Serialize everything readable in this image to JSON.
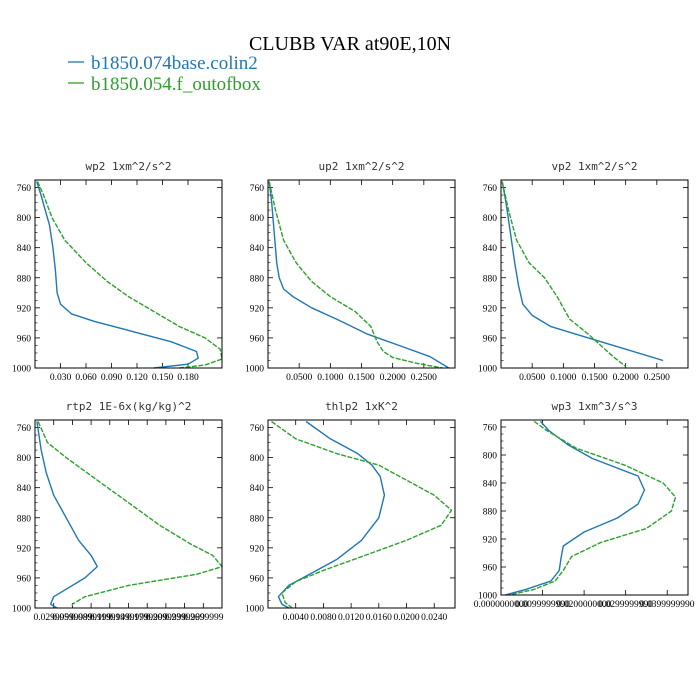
{
  "figure": {
    "title": "CLUBB VAR at90E,10N",
    "legend": [
      {
        "name": "b1850.074base.colin2",
        "color": "#1f77b4"
      },
      {
        "name": "b1850.054.f_outofbox",
        "color": "#2ca02c"
      }
    ]
  },
  "chart_data": [
    {
      "type": "line",
      "title": "wp2   1xm^2/s^2",
      "xlim": [
        0,
        0.22
      ],
      "ylim": [
        1000,
        750
      ],
      "xticks": [
        0.03,
        0.06,
        0.09,
        0.12,
        0.15,
        0.18
      ],
      "xticklabels": [
        "0.030",
        "0.060",
        "0.090",
        "0.120",
        "0.150",
        "0.180"
      ],
      "yticks": [
        760,
        800,
        840,
        880,
        920,
        960,
        1000
      ],
      "series": [
        {
          "name": "b1850.074base.colin2",
          "color": "#1f77b4",
          "x": [
            0.002,
            0.007,
            0.012,
            0.017,
            0.021,
            0.024,
            0.026,
            0.03,
            0.043,
            0.07,
            0.11,
            0.16,
            0.19,
            0.192,
            0.18,
            0.14
          ],
          "y": [
            752,
            770,
            790,
            810,
            840,
            870,
            900,
            915,
            928,
            938,
            950,
            965,
            978,
            987,
            995,
            1000
          ]
        },
        {
          "name": "b1850.054.f_outofbox",
          "color": "#2ca02c",
          "x": [
            0.003,
            0.01,
            0.02,
            0.035,
            0.06,
            0.085,
            0.11,
            0.14,
            0.17,
            0.2,
            0.218,
            0.22,
            0.2,
            0.17
          ],
          "y": [
            752,
            770,
            800,
            830,
            860,
            885,
            905,
            925,
            945,
            960,
            975,
            988,
            996,
            1000
          ]
        }
      ]
    },
    {
      "type": "line",
      "title": "up2   1xm^2/s^2",
      "xlim": [
        0,
        0.3
      ],
      "ylim": [
        1000,
        750
      ],
      "xticks": [
        0.05,
        0.1,
        0.15,
        0.2,
        0.25
      ],
      "xticklabels": [
        "0.0500",
        "0.1000",
        "0.1500",
        "0.2000",
        "0.2500"
      ],
      "yticks": [
        760,
        800,
        840,
        880,
        920,
        960,
        1000
      ],
      "series": [
        {
          "name": "b1850.074base.colin2",
          "color": "#1f77b4",
          "x": [
            0.002,
            0.006,
            0.01,
            0.014,
            0.018,
            0.025,
            0.04,
            0.07,
            0.11,
            0.16,
            0.21,
            0.26,
            0.29
          ],
          "y": [
            752,
            780,
            820,
            860,
            880,
            895,
            905,
            920,
            935,
            955,
            970,
            985,
            1000
          ]
        },
        {
          "name": "b1850.054.f_outofbox",
          "color": "#2ca02c",
          "x": [
            0.002,
            0.012,
            0.025,
            0.045,
            0.07,
            0.1,
            0.14,
            0.165,
            0.175,
            0.185,
            0.2,
            0.24,
            0.28
          ],
          "y": [
            752,
            790,
            830,
            860,
            885,
            905,
            925,
            945,
            965,
            978,
            986,
            994,
            1000
          ]
        }
      ]
    },
    {
      "type": "line",
      "title": "vp2   1xm^2/s^2",
      "xlim": [
        0,
        0.3
      ],
      "ylim": [
        1000,
        750
      ],
      "xticks": [
        0.05,
        0.1,
        0.15,
        0.2,
        0.25
      ],
      "xticklabels": [
        "0.0500",
        "0.1000",
        "0.1500",
        "0.2000",
        "0.2500"
      ],
      "yticks": [
        760,
        800,
        840,
        880,
        920,
        960,
        1000
      ],
      "series": [
        {
          "name": "b1850.074base.colin2",
          "color": "#1f77b4",
          "x": [
            0.002,
            0.008,
            0.015,
            0.022,
            0.028,
            0.035,
            0.05,
            0.08,
            0.14,
            0.2,
            0.26
          ],
          "y": [
            752,
            780,
            820,
            860,
            890,
            915,
            930,
            945,
            960,
            975,
            990
          ]
        },
        {
          "name": "b1850.054.f_outofbox",
          "color": "#2ca02c",
          "x": [
            0.002,
            0.012,
            0.025,
            0.045,
            0.07,
            0.09,
            0.11,
            0.14,
            0.16,
            0.18,
            0.2
          ],
          "y": [
            752,
            790,
            830,
            860,
            880,
            905,
            935,
            955,
            970,
            985,
            998
          ]
        }
      ]
    },
    {
      "type": "line",
      "title": "rtp2   1E-6x(kg/kg)^2",
      "xlim": [
        0,
        0.3
      ],
      "ylim": [
        1000,
        750
      ],
      "xticks": [
        0.03,
        0.06,
        0.09,
        0.12,
        0.15,
        0.18,
        0.21,
        0.24,
        0.27
      ],
      "xticklabels": [
        "0.0299999",
        "0.0599999",
        "0.0899999",
        "0.1199999",
        "0.1499999",
        "0.1799999",
        "0.2099999",
        "0.2399999",
        "0.2699999"
      ],
      "yticks": [
        760,
        800,
        840,
        880,
        920,
        960,
        1000
      ],
      "series": [
        {
          "name": "b1850.074base.colin2",
          "color": "#1f77b4",
          "x": [
            0.003,
            0.01,
            0.018,
            0.03,
            0.05,
            0.07,
            0.09,
            0.1,
            0.08,
            0.05,
            0.03,
            0.025,
            0.035
          ],
          "y": [
            752,
            790,
            820,
            850,
            880,
            910,
            930,
            945,
            960,
            975,
            985,
            995,
            1000
          ]
        },
        {
          "name": "b1850.054.f_outofbox",
          "color": "#2ca02c",
          "x": [
            0.005,
            0.02,
            0.05,
            0.1,
            0.15,
            0.2,
            0.25,
            0.285,
            0.3,
            0.26,
            0.15,
            0.08,
            0.06,
            0.06
          ],
          "y": [
            752,
            780,
            800,
            830,
            860,
            890,
            915,
            930,
            945,
            955,
            970,
            985,
            995,
            1000
          ]
        }
      ]
    },
    {
      "type": "line",
      "title": "thlp2   1xK^2",
      "xlim": [
        0,
        0.027
      ],
      "ylim": [
        1000,
        750
      ],
      "xticks": [
        0.004,
        0.008,
        0.012,
        0.016,
        0.02,
        0.024
      ],
      "xticklabels": [
        "0.0040",
        "0.0080",
        "0.0120",
        "0.0160",
        "0.0200",
        "0.0240"
      ],
      "yticks": [
        760,
        800,
        840,
        880,
        920,
        960,
        1000
      ],
      "series": [
        {
          "name": "b1850.074base.colin2",
          "color": "#1f77b4",
          "x": [
            0.0055,
            0.009,
            0.013,
            0.015,
            0.0162,
            0.0168,
            0.016,
            0.0135,
            0.01,
            0.006,
            0.003,
            0.0015,
            0.002,
            0.003
          ],
          "y": [
            752,
            775,
            795,
            810,
            825,
            850,
            880,
            910,
            935,
            955,
            970,
            985,
            995,
            1000
          ]
        },
        {
          "name": "b1850.054.f_outofbox",
          "color": "#2ca02c",
          "x": [
            0.0005,
            0.004,
            0.01,
            0.016,
            0.02,
            0.024,
            0.0265,
            0.025,
            0.02,
            0.014,
            0.008,
            0.004,
            0.002,
            0.0025,
            0.0035
          ],
          "y": [
            752,
            775,
            795,
            810,
            830,
            850,
            870,
            890,
            910,
            930,
            950,
            965,
            980,
            993,
            1000
          ]
        }
      ]
    },
    {
      "type": "line",
      "title": "wp3   1xm^3/s^3",
      "xlim": [
        0,
        0.045
      ],
      "ylim": [
        1000,
        750
      ],
      "xticks": [
        0,
        0.01,
        0.02,
        0.03,
        0.04
      ],
      "xticklabels": [
        "0.0000000000",
        "0.0099999990",
        "0.0200000000",
        "0.0299999990",
        "0.0399999990"
      ],
      "yticks": [
        760,
        800,
        840,
        880,
        920,
        960,
        1000
      ],
      "series": [
        {
          "name": "b1850.074base.colin2",
          "color": "#1f77b4",
          "x": [
            0.0095,
            0.0115,
            0.016,
            0.022,
            0.033,
            0.0345,
            0.033,
            0.028,
            0.02,
            0.015,
            0.0145,
            0.014,
            0.012,
            0.006,
            0.001
          ],
          "y": [
            752,
            765,
            785,
            805,
            830,
            850,
            870,
            890,
            910,
            930,
            945,
            965,
            980,
            992,
            1000
          ]
        },
        {
          "name": "b1850.054.f_outofbox",
          "color": "#2ca02c",
          "x": [
            0.008,
            0.011,
            0.018,
            0.03,
            0.039,
            0.042,
            0.041,
            0.035,
            0.024,
            0.017,
            0.015,
            0.013,
            0.008,
            0.002
          ],
          "y": [
            752,
            765,
            790,
            815,
            840,
            860,
            880,
            905,
            925,
            945,
            965,
            980,
            992,
            1000
          ]
        }
      ]
    }
  ]
}
